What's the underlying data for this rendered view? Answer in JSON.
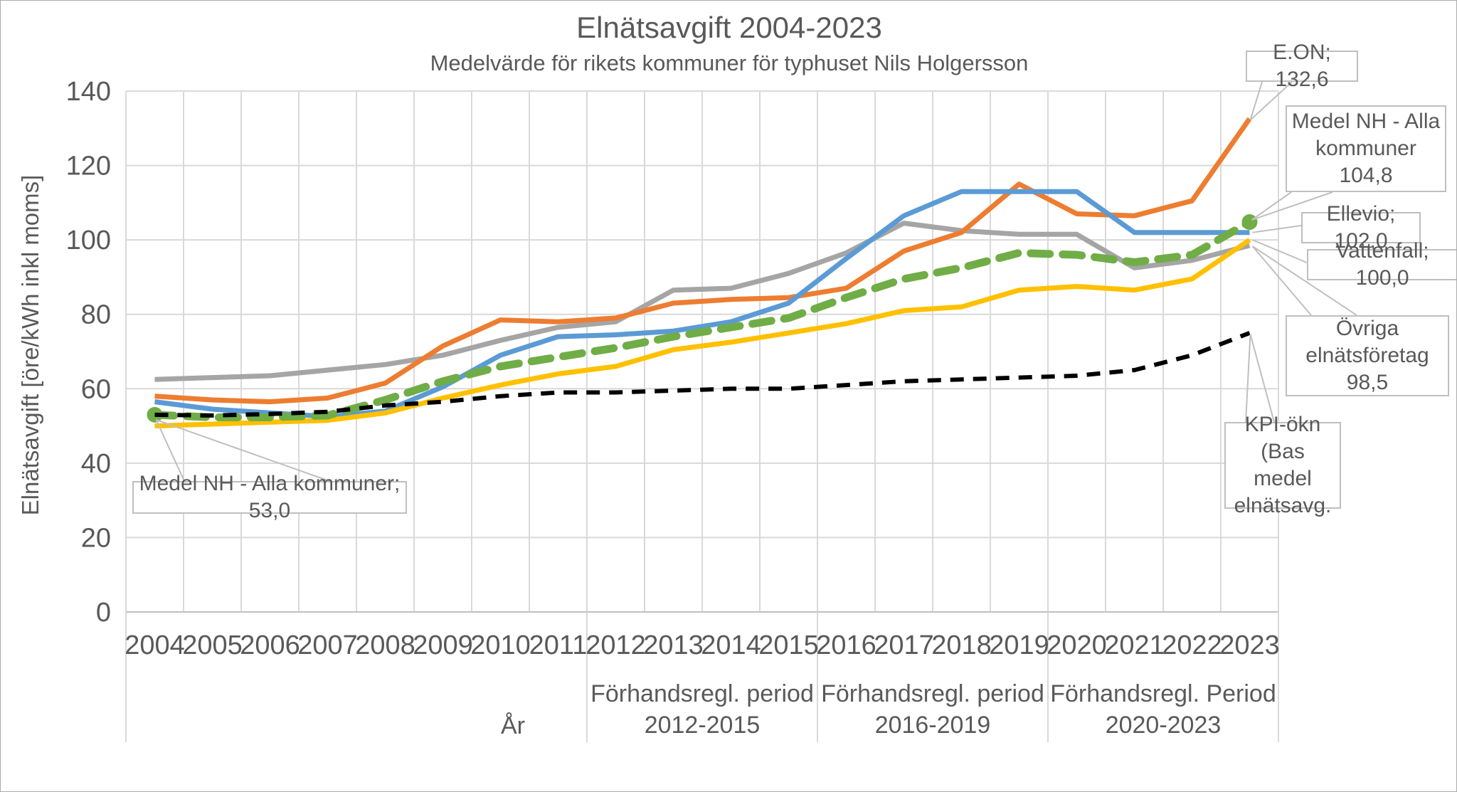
{
  "title": "Elnätsavgift 2004-2023",
  "subtitle": "Medelvärde för rikets kommuner för typhuset Nils Holgersson",
  "y_axis": {
    "title": "Elnätsavgift [öre/kWh inkl moms]",
    "ticks": [
      0,
      20,
      40,
      60,
      80,
      100,
      120,
      140
    ]
  },
  "x_axis": {
    "title": "År",
    "years": [
      "2004",
      "2005",
      "2006",
      "2007",
      "2008",
      "2009",
      "2010",
      "2011",
      "2012",
      "2013",
      "2014",
      "2015",
      "2016",
      "2017",
      "2018",
      "2019",
      "2020",
      "2021",
      "2022",
      "2023"
    ]
  },
  "period_bands": [
    {
      "line1": "Förhandsregl. period",
      "line2": "2012-2015",
      "start_year": "2012",
      "end_year": "2015"
    },
    {
      "line1": "Förhandsregl. period",
      "line2": "2016-2019",
      "start_year": "2016",
      "end_year": "2019"
    },
    {
      "line1": "Förhandsregl. Period",
      "line2": "2020-2023",
      "start_year": "2020",
      "end_year": "2023"
    }
  ],
  "chart_data": {
    "type": "line",
    "x": [
      2004,
      2005,
      2006,
      2007,
      2008,
      2009,
      2010,
      2011,
      2012,
      2013,
      2014,
      2015,
      2016,
      2017,
      2018,
      2019,
      2020,
      2021,
      2022,
      2023
    ],
    "ylim": [
      0,
      140
    ],
    "grid": true,
    "legend_position": "none",
    "series": [
      {
        "name": "Övriga elnätsföretag",
        "color": "#A5A5A5",
        "style": "solid",
        "width": 7,
        "values": [
          62.5,
          63,
          63.5,
          65,
          66.5,
          69,
          73,
          76.5,
          78,
          86.5,
          87,
          91,
          96.5,
          104.5,
          102.5,
          101.5,
          101.5,
          92.5,
          94.5,
          98.5
        ]
      },
      {
        "name": "E.ON",
        "color": "#ED7D31",
        "style": "solid",
        "width": 7,
        "values": [
          58,
          57,
          56.5,
          57.5,
          61.5,
          71.5,
          78.5,
          78,
          79,
          83,
          84,
          84.5,
          87,
          97,
          102,
          115,
          107,
          106.5,
          110.5,
          132.6
        ]
      },
      {
        "name": "Ellevio",
        "color": "#5B9BD5",
        "style": "solid",
        "width": 7,
        "values": [
          56.5,
          54.5,
          53.5,
          52.5,
          54,
          60.5,
          69,
          74,
          74.5,
          75.5,
          78,
          83,
          95,
          106.5,
          113,
          113,
          113,
          102,
          102,
          102
        ]
      },
      {
        "name": "Vattenfall",
        "color": "#FFC000",
        "style": "solid",
        "width": 7,
        "values": [
          50,
          50.5,
          51,
          51.5,
          53.5,
          57.5,
          61,
          64,
          66,
          70.5,
          72.5,
          75,
          77.5,
          81,
          82,
          86.5,
          87.5,
          86.5,
          89.5,
          100
        ]
      },
      {
        "name": "Medel NH - Alla kommuner",
        "color": "#70AD47",
        "style": "dashed",
        "width": 11,
        "dash": [
          27,
          18
        ],
        "markers": "endpoints",
        "values": [
          53,
          52.3,
          52.3,
          52.8,
          57,
          62,
          66,
          68.5,
          71,
          74,
          76.5,
          79,
          84.5,
          89.5,
          92.5,
          96.5,
          96,
          94,
          96,
          104.8
        ]
      },
      {
        "name": "KPI-ökn (Bas medel elnätsavg.)",
        "color": "#000000",
        "style": "dashed",
        "width": 6,
        "dash": [
          19,
          13
        ],
        "values": [
          53,
          52.8,
          53.2,
          53.8,
          55.5,
          56.5,
          58,
          59,
          59,
          59.5,
          60,
          60,
          61,
          62,
          62.5,
          63,
          63.5,
          65,
          69,
          75
        ]
      }
    ]
  },
  "callouts": [
    {
      "id": "eon",
      "lines": [
        "E.ON; 132,6"
      ],
      "year": 2023,
      "value": 132.6
    },
    {
      "id": "medel-end",
      "lines": [
        "Medel NH - Alla",
        "kommuner",
        "104,8"
      ],
      "year": 2023,
      "value": 104.8
    },
    {
      "id": "ellevio",
      "lines": [
        "Ellevio; 102,0"
      ],
      "year": 2023,
      "value": 102.0
    },
    {
      "id": "vattenfall",
      "lines": [
        "Vattenfall; 100,0"
      ],
      "year": 2023,
      "value": 100.0
    },
    {
      "id": "ovriga",
      "lines": [
        "Övriga",
        "elnätsföretag 98,5"
      ],
      "year": 2023,
      "value": 98.5
    },
    {
      "id": "kpi",
      "lines": [
        "KPI-ökn (Bas",
        "medel",
        "elnätsavg."
      ],
      "year": 2023,
      "value": 75
    },
    {
      "id": "medel-start",
      "lines": [
        "Medel NH - Alla kommuner; 53,0"
      ],
      "year": 2004,
      "value": 53.0
    }
  ],
  "colors": {
    "grid": "#D9D9D9",
    "axis": "#BFBFBF",
    "text": "#595959",
    "callout_border": "#BFBFBF"
  }
}
